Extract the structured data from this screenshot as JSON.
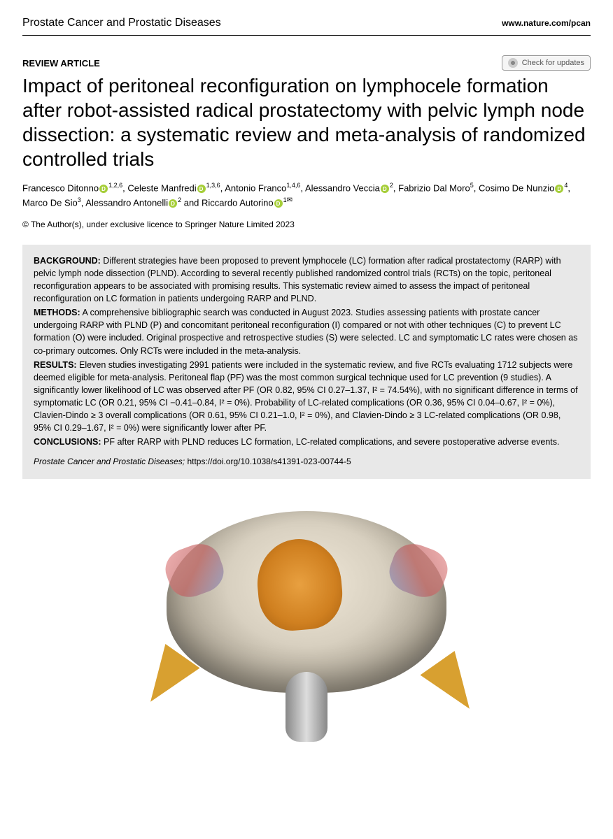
{
  "header": {
    "journal": "Prostate Cancer and Prostatic Diseases",
    "url": "www.nature.com/pcan"
  },
  "article_type": "REVIEW ARTICLE",
  "check_updates_label": "Check for updates",
  "title": "Impact of peritoneal reconfiguration on lymphocele formation after robot-assisted radical prostatectomy with pelvic lymph node dissection: a systematic review and meta-analysis of randomized controlled trials",
  "authors": [
    {
      "name": "Francesco Ditonno",
      "orcid": true,
      "aff": "1,2,6",
      "trail": ", "
    },
    {
      "name": "Celeste Manfredi",
      "orcid": true,
      "aff": "1,3,6",
      "trail": ", "
    },
    {
      "name": "Antonio Franco",
      "orcid": false,
      "aff": "1,4,6",
      "trail": ", "
    },
    {
      "name": "Alessandro Veccia",
      "orcid": true,
      "aff": "2",
      "trail": ", "
    },
    {
      "name": "Fabrizio Dal Moro",
      "orcid": false,
      "aff": "5",
      "trail": ", "
    },
    {
      "name": "Cosimo De Nunzio",
      "orcid": true,
      "aff": "4",
      "trail": ", "
    },
    {
      "name": "Marco De Sio",
      "orcid": false,
      "aff": "3",
      "trail": ", "
    },
    {
      "name": "Alessandro Antonelli",
      "orcid": true,
      "aff": "2",
      "trail": " and "
    },
    {
      "name": "Riccardo Autorino",
      "orcid": true,
      "aff": "1",
      "corresponding": true,
      "trail": ""
    }
  ],
  "copyright": "© The Author(s), under exclusive licence to Springer Nature Limited 2023",
  "abstract": {
    "background_label": "BACKGROUND:",
    "background": " Different strategies have been proposed to prevent lymphocele (LC) formation after radical prostatectomy (RARP) with pelvic lymph node dissection (PLND). According to several recently published randomized control trials (RCTs) on the topic, peritoneal reconfiguration appears to be associated with promising results. This systematic review aimed to assess the impact of peritoneal reconfiguration on LC formation in patients undergoing RARP and PLND.",
    "methods_label": "METHODS:",
    "methods": " A comprehensive bibliographic search was conducted in August 2023. Studies assessing patients with prostate cancer undergoing RARP with PLND (P) and concomitant peritoneal reconfiguration (I) compared or not with other techniques (C) to prevent LC formation (O) were included. Original prospective and retrospective studies (S) were selected. LC and symptomatic LC rates were chosen as co-primary outcomes. Only RCTs were included in the meta-analysis.",
    "results_label": "RESULTS:",
    "results": " Eleven studies investigating 2991 patients were included in the systematic review, and five RCTs evaluating 1712 subjects were deemed eligible for meta-analysis. Peritoneal flap (PF) was the most common surgical technique used for LC prevention (9 studies). A significantly lower likelihood of LC was observed after PF (OR 0.82, 95% CI 0.27–1.37, I² = 74.54%), with no significant difference in terms of symptomatic LC (OR 0.21, 95% CI −0.41–0.84, I² = 0%). Probability of LC-related complications (OR 0.36, 95% CI 0.04–0.67, I² = 0%), Clavien-Dindo ≥ 3 overall complications (OR 0.61, 95% CI 0.21–1.0, I² = 0%), and Clavien-Dindo ≥ 3 LC-related complications (OR 0.98, 95% CI 0.29–1.67, I² = 0%) were significantly lower after PF.",
    "conclusions_label": "CONCLUSIONS:",
    "conclusions": " PF after RARP with PLND reduces LC formation, LC-related complications, and severe postoperative adverse events."
  },
  "doi": {
    "journal": "Prostate Cancer and Prostatic Diseases",
    "url": "https://doi.org/10.1038/s41391-023-00744-5"
  },
  "colors": {
    "abstract_bg": "#e8e8e8",
    "orcid_green": "#a6ce39",
    "figure_organ": "#e8a040",
    "figure_arrow": "#d8a030"
  }
}
